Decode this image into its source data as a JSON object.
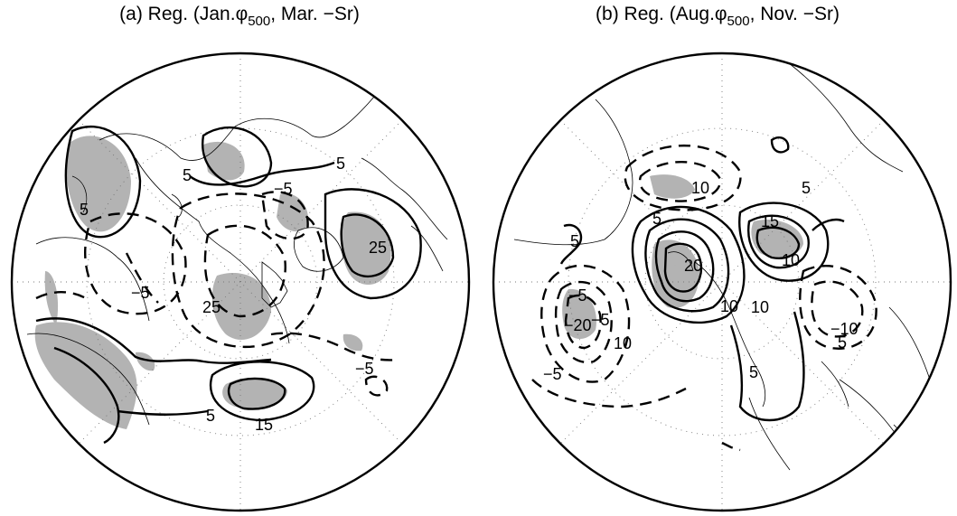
{
  "panels": [
    {
      "id": "a",
      "title": {
        "prefix": "(a) Reg. (Jan.",
        "symbol": "φ",
        "subscript": "500",
        "suffix": ", Mar. −Sr)"
      },
      "contour_labels": [
        "5",
        "5",
        "−5",
        "5",
        "−5",
        "25",
        "−5",
        "15",
        "5",
        "25"
      ]
    },
    {
      "id": "b",
      "title": {
        "prefix": "(b) Reg. (Aug.",
        "symbol": "φ",
        "subscript": "500",
        "suffix": ", Nov. −Sr)"
      },
      "contour_labels": [
        "5",
        "10",
        "15",
        "5",
        "10",
        "10",
        "20",
        "5",
        "−10",
        "5",
        "−5",
        "−5",
        "−20",
        "10",
        "−5",
        "5",
        "10"
      ]
    }
  ]
}
